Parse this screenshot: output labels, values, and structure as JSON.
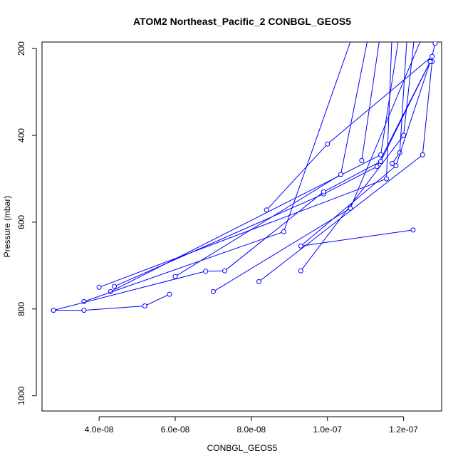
{
  "chart_data": {
    "type": "line",
    "title": "ATOM2 Northeast_Pacific_2 CONBGL_GEOS5",
    "xlabel": "CONBGL_GEOS5",
    "ylabel": "Pressure (mbar)",
    "xlim": [
      2.5e-08,
      1.3e-07
    ],
    "ylim": [
      1035,
      185
    ],
    "y_reversed": true,
    "x_ticks": [
      4e-08,
      6e-08,
      8e-08,
      1e-07,
      1.2e-07
    ],
    "x_tick_labels": [
      "4.0e-08",
      "6.0e-08",
      "8.0e-08",
      "1.0e-07",
      "1.2e-07"
    ],
    "y_ticks": [
      200,
      400,
      600,
      800,
      1000
    ],
    "y_tick_labels": [
      "200",
      "400",
      "600",
      "800",
      "1000"
    ],
    "series_color": "#0000ff",
    "grid": false,
    "series": [
      {
        "x": [
          1.285e-07,
          1.283e-07,
          1.275e-07,
          1e-07,
          8.4e-08
        ],
        "y": [
          130,
          188,
          218,
          420,
          572
        ]
      },
      {
        "x": [
          1.25e-07,
          1.255e-07,
          1.06e-07,
          7e-08
        ],
        "y": [
          130,
          160,
          568,
          760
        ]
      },
      {
        "x": [
          1.22e-07,
          1.23e-07,
          1.2e-07,
          9.3e-08
        ],
        "y": [
          130,
          160,
          400,
          712
        ]
      },
      {
        "x": [
          1.2e-07,
          1.21e-07,
          1.19e-07,
          1.17e-07
        ],
        "y": [
          130,
          160,
          440,
          465
        ]
      },
      {
        "x": [
          1.18e-07,
          1.19e-07,
          1.14e-07,
          4.3e-08
        ],
        "y": [
          130,
          160,
          445,
          760
        ]
      },
      {
        "x": [
          1.16e-07,
          1.17e-07,
          1.155e-07,
          4e-08
        ],
        "y": [
          130,
          160,
          500,
          750
        ]
      },
      {
        "x": [
          1.13e-07,
          1.14e-07,
          1.09e-07
        ],
        "y": [
          130,
          160,
          458
        ]
      },
      {
        "x": [
          1.1e-07,
          1.11e-07,
          1.035e-07,
          6e-08
        ],
        "y": [
          130,
          160,
          490,
          725
        ]
      },
      {
        "x": [
          1.06e-07,
          1.07e-07,
          8.85e-08,
          3.6e-08
        ],
        "y": [
          130,
          160,
          622,
          783
        ]
      },
      {
        "x": [
          1.275e-07,
          1.25e-07,
          8.2e-08
        ],
        "y": [
          230,
          445,
          737
        ]
      },
      {
        "x": [
          1.27e-07,
          1.18e-07,
          9.3e-08,
          1.225e-07
        ],
        "y": [
          230,
          470,
          655,
          618
        ]
      },
      {
        "x": [
          1.27e-07,
          1.13e-07,
          9.9e-08,
          4.4e-08
        ],
        "y": [
          230,
          472,
          535,
          748
        ]
      },
      {
        "x": [
          1.27e-07,
          1.14e-07,
          9.9e-08,
          7.3e-08,
          6.8e-08,
          2.8e-08,
          3.6e-08,
          5.2e-08,
          5.85e-08
        ],
        "y": [
          230,
          460,
          530,
          712,
          713,
          803,
          803,
          793,
          766
        ]
      }
    ]
  }
}
